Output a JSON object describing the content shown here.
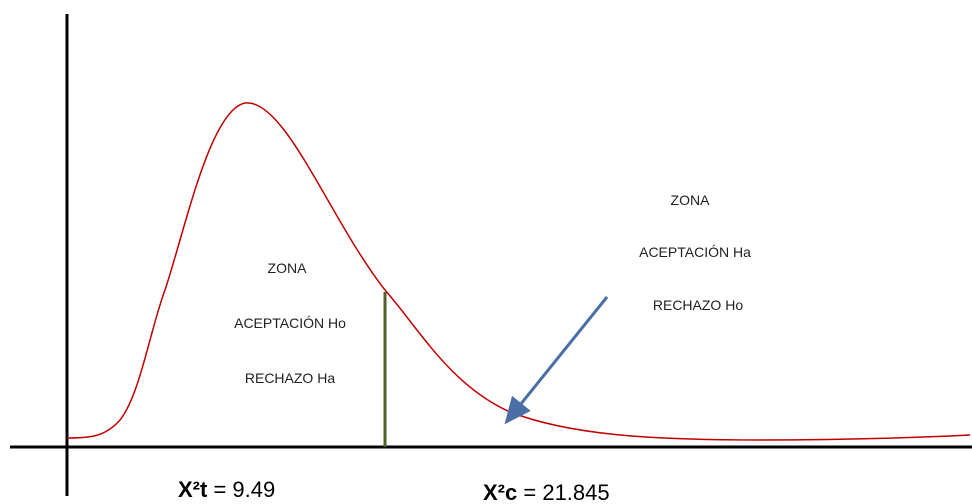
{
  "left_zone": {
    "lines": [
      "ZONA",
      "ACEPTACIÓN Ho",
      "RECHAZO Ha"
    ]
  },
  "right_zone": {
    "lines": [
      "ZONA",
      "ACEPTACIÓN Ha",
      "RECHAZO Ho"
    ]
  },
  "critical_table": {
    "symbol": "X²t",
    "value": "= 9.49"
  },
  "critical_computed": {
    "symbol": "X²c",
    "value": "= 21.845"
  }
}
